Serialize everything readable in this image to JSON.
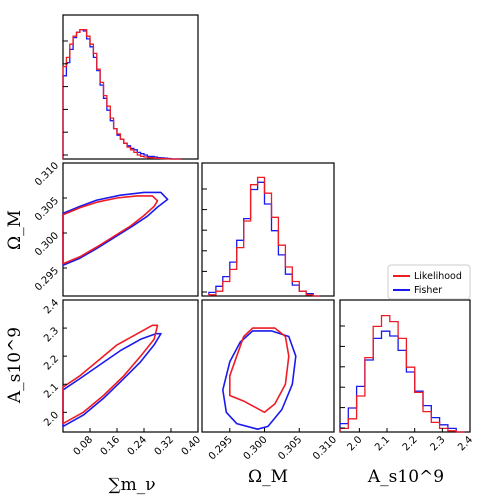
{
  "chart_data": {
    "type": "corner",
    "parameters": [
      {
        "key": "mnu",
        "label": "∑m_ν",
        "range": [
          0.0,
          0.4
        ],
        "ticks": [
          "0.08",
          "0.16",
          "0.24",
          "0.32",
          "0.40"
        ]
      },
      {
        "key": "om",
        "label": "Ω_M",
        "range": [
          0.291,
          0.31
        ],
        "ticks": [
          "0.295",
          "0.300",
          "0.305",
          "0.310"
        ]
      },
      {
        "key": "As",
        "label": "A_s10^9",
        "range": [
          1.93,
          2.4
        ],
        "ticks": [
          "2.0",
          "2.1",
          "2.2",
          "2.3",
          "2.4"
        ]
      }
    ],
    "y_tick_labels": {
      "om": [
        "0.295",
        "0.300",
        "0.305",
        "0.310"
      ],
      "As": [
        "2.0",
        "2.1",
        "2.2",
        "2.3",
        "2.4"
      ]
    },
    "legend": {
      "placement": "right, beside bottom-right panel",
      "entries": [
        {
          "name": "Likelihood",
          "color": "#ee1c25"
        },
        {
          "name": "Fisher",
          "color": "#1a1aee"
        }
      ]
    },
    "histograms": {
      "mnu": {
        "bins": [
          0.0,
          0.01,
          0.02,
          0.03,
          0.04,
          0.05,
          0.06,
          0.07,
          0.08,
          0.09,
          0.1,
          0.11,
          0.12,
          0.13,
          0.14,
          0.15,
          0.16,
          0.17,
          0.18,
          0.19,
          0.2,
          0.21,
          0.22,
          0.23,
          0.24,
          0.25,
          0.26,
          0.27,
          0.28,
          0.29,
          0.3,
          0.31,
          0.32,
          0.33,
          0.34,
          0.35
        ],
        "Likelihood": [
          0.7,
          0.77,
          0.87,
          0.93,
          0.96,
          0.98,
          0.98,
          0.93,
          0.87,
          0.8,
          0.68,
          0.58,
          0.48,
          0.4,
          0.31,
          0.23,
          0.19,
          0.15,
          0.12,
          0.09,
          0.07,
          0.05,
          0.03,
          0.02,
          0.015,
          0.01,
          0.01,
          0.005,
          0.005,
          0.003,
          0.002,
          0.001,
          0.0,
          0.0,
          0.0
        ],
        "Fisher": [
          0.63,
          0.73,
          0.83,
          0.92,
          0.96,
          0.98,
          0.97,
          0.91,
          0.85,
          0.77,
          0.67,
          0.56,
          0.46,
          0.37,
          0.29,
          0.23,
          0.18,
          0.15,
          0.12,
          0.1,
          0.08,
          0.07,
          0.05,
          0.04,
          0.03,
          0.02,
          0.02,
          0.015,
          0.01,
          0.008,
          0.006,
          0.004,
          0.0,
          0.0,
          0.0
        ]
      },
      "om": {
        "bins": [
          0.292,
          0.293,
          0.294,
          0.295,
          0.296,
          0.297,
          0.298,
          0.299,
          0.3,
          0.301,
          0.302,
          0.303,
          0.304,
          0.305,
          0.306,
          0.307,
          0.308
        ],
        "Likelihood": [
          0.01,
          0.04,
          0.12,
          0.22,
          0.4,
          0.62,
          0.92,
          0.98,
          0.85,
          0.65,
          0.42,
          0.24,
          0.12,
          0.04,
          0.01,
          0.0
        ],
        "Fisher": [
          0.03,
          0.08,
          0.16,
          0.28,
          0.46,
          0.64,
          0.88,
          0.94,
          0.76,
          0.54,
          0.34,
          0.18,
          0.09,
          0.04,
          0.02,
          0.0
        ]
      },
      "As": {
        "bins": [
          1.93,
          1.96,
          1.99,
          2.02,
          2.05,
          2.08,
          2.11,
          2.14,
          2.17,
          2.2,
          2.23,
          2.26,
          2.29,
          2.32,
          2.35,
          2.38
        ],
        "Likelihood": [
          0.03,
          0.11,
          0.3,
          0.62,
          0.88,
          0.97,
          0.92,
          0.78,
          0.54,
          0.33,
          0.17,
          0.08,
          0.03,
          0.01,
          0.0
        ],
        "Fisher": [
          0.07,
          0.2,
          0.38,
          0.6,
          0.78,
          0.84,
          0.8,
          0.68,
          0.5,
          0.34,
          0.22,
          0.12,
          0.06,
          0.03,
          0.0
        ]
      }
    },
    "contours": {
      "om_vs_mnu": {
        "Likelihood": [
          [
            0.0,
            0.2956
          ],
          [
            0.05,
            0.2966
          ],
          [
            0.1,
            0.298
          ],
          [
            0.15,
            0.2995
          ],
          [
            0.2,
            0.301
          ],
          [
            0.24,
            0.3025
          ],
          [
            0.27,
            0.3038
          ],
          [
            0.28,
            0.3046
          ],
          [
            0.265,
            0.3053
          ],
          [
            0.22,
            0.3053
          ],
          [
            0.16,
            0.305
          ],
          [
            0.1,
            0.3044
          ],
          [
            0.05,
            0.3036
          ],
          [
            0.0,
            0.3026
          ]
        ],
        "Fisher": [
          [
            0.0,
            0.2954
          ],
          [
            0.05,
            0.2964
          ],
          [
            0.1,
            0.2978
          ],
          [
            0.15,
            0.2993
          ],
          [
            0.2,
            0.3008
          ],
          [
            0.25,
            0.3024
          ],
          [
            0.28,
            0.3037
          ],
          [
            0.31,
            0.3048
          ],
          [
            0.29,
            0.3058
          ],
          [
            0.24,
            0.3058
          ],
          [
            0.17,
            0.3054
          ],
          [
            0.1,
            0.3047
          ],
          [
            0.05,
            0.3038
          ],
          [
            0.0,
            0.3028
          ]
        ]
      },
      "As_vs_mnu": {
        "Likelihood": [
          [
            0.0,
            1.96
          ],
          [
            0.06,
            2.0
          ],
          [
            0.12,
            2.06
          ],
          [
            0.18,
            2.13
          ],
          [
            0.23,
            2.2
          ],
          [
            0.27,
            2.26
          ],
          [
            0.28,
            2.31
          ],
          [
            0.265,
            2.31
          ],
          [
            0.22,
            2.28
          ],
          [
            0.16,
            2.24
          ],
          [
            0.1,
            2.18
          ],
          [
            0.05,
            2.13
          ],
          [
            0.0,
            2.09
          ]
        ],
        "Fisher": [
          [
            0.0,
            1.95
          ],
          [
            0.06,
            1.99
          ],
          [
            0.12,
            2.05
          ],
          [
            0.18,
            2.12
          ],
          [
            0.23,
            2.18
          ],
          [
            0.27,
            2.24
          ],
          [
            0.29,
            2.28
          ],
          [
            0.275,
            2.28
          ],
          [
            0.23,
            2.26
          ],
          [
            0.17,
            2.22
          ],
          [
            0.11,
            2.17
          ],
          [
            0.05,
            2.12
          ],
          [
            0.0,
            2.08
          ]
        ]
      },
      "As_vs_om": {
        "Likelihood": [
          [
            0.2983,
            2.3
          ],
          [
            0.3015,
            2.3
          ],
          [
            0.303,
            2.27
          ],
          [
            0.3035,
            2.2
          ],
          [
            0.303,
            2.1
          ],
          [
            0.3015,
            2.03
          ],
          [
            0.3,
            2.0
          ],
          [
            0.2985,
            2.02
          ],
          [
            0.297,
            2.04
          ],
          [
            0.295,
            2.06
          ],
          [
            0.295,
            2.13
          ],
          [
            0.296,
            2.2
          ],
          [
            0.297,
            2.27
          ]
        ],
        "Fisher": [
          [
            0.2983,
            2.29
          ],
          [
            0.301,
            2.29
          ],
          [
            0.3035,
            2.27
          ],
          [
            0.3045,
            2.2
          ],
          [
            0.304,
            2.1
          ],
          [
            0.3025,
            2.01
          ],
          [
            0.3005,
            1.95
          ],
          [
            0.299,
            1.94
          ],
          [
            0.296,
            1.96
          ],
          [
            0.2945,
            2.0
          ],
          [
            0.294,
            2.08
          ],
          [
            0.295,
            2.18
          ],
          [
            0.2965,
            2.25
          ]
        ]
      }
    }
  }
}
